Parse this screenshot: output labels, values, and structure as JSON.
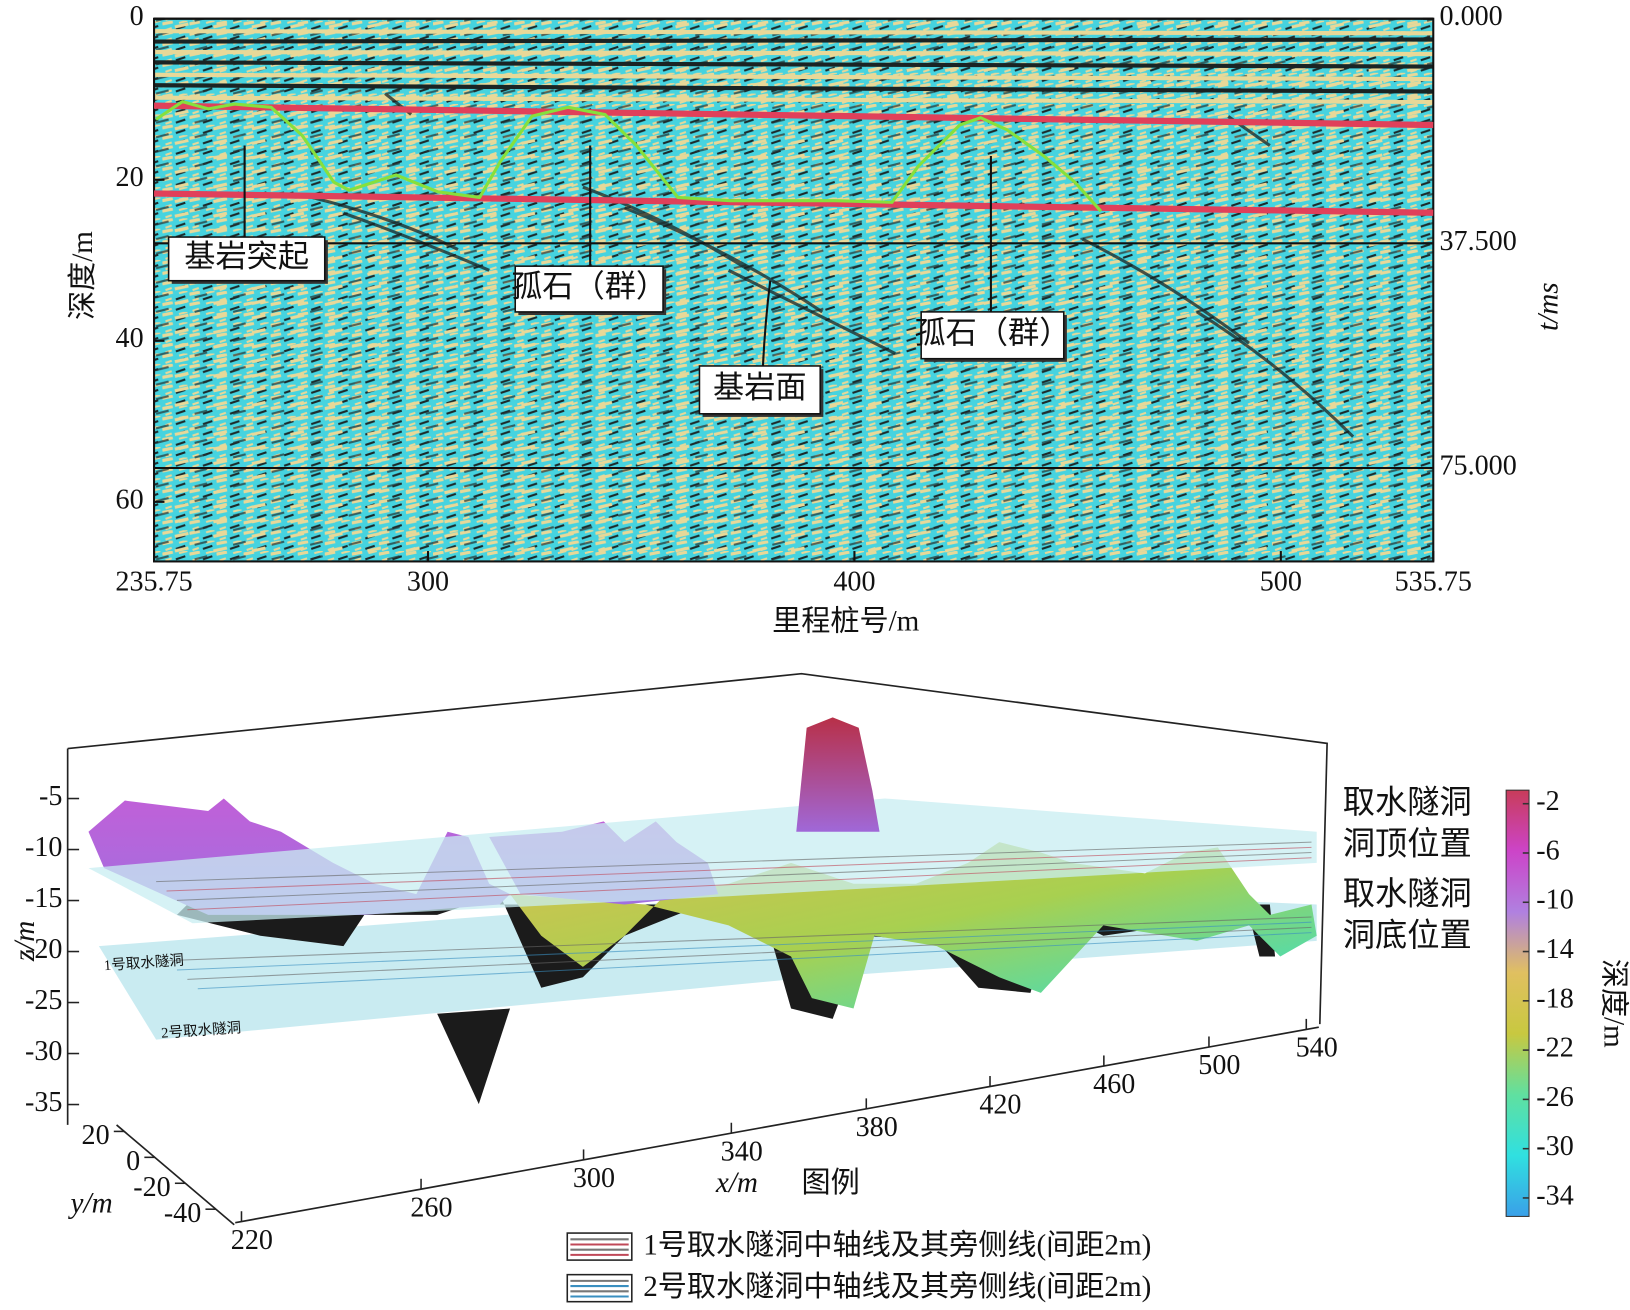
{
  "chart_data": [
    {
      "type": "seismic-section",
      "xlabel": "里程桩号/m",
      "ylabel": "深度/m",
      "y2label": "t/ms",
      "xlim": [
        235.75,
        535.75
      ],
      "xticks": [
        235.75,
        300,
        400,
        500,
        535.75
      ],
      "ylim": [
        0,
        67.4
      ],
      "yticks": [
        0,
        20,
        40,
        60
      ],
      "y2lim": [
        0,
        90.6
      ],
      "y2ticks": [
        {
          "value": 0,
          "label": "0.000"
        },
        {
          "value": 37.5,
          "label": "37.500"
        },
        {
          "value": 75,
          "label": "75.000"
        }
      ],
      "y2grid": true,
      "series": [
        {
          "color": "#e0405a",
          "x": [
            235.75,
            535.75
          ],
          "values": [
            10.8,
            13.2
          ]
        },
        {
          "color": "#e0405a",
          "x": [
            235.75,
            535.75
          ],
          "values": [
            21.7,
            24.1
          ]
        },
        {
          "color": "#86e03c",
          "x": [
            236.2,
            242.4,
            248.5,
            254.6,
            263.2,
            270.5,
            277.9,
            281.5,
            292.5,
            302.3,
            312.1,
            317.0,
            324.4,
            332.9,
            341.5,
            348.8,
            358.6,
            370.9,
            395.4,
            408.8,
            415.0,
            424.7,
            429.6,
            435.8,
            444.3,
            451.7,
            457.8
          ],
          "values": [
            12.5,
            10.3,
            11.2,
            10.6,
            11.0,
            14.5,
            20.3,
            21.3,
            19.4,
            21.5,
            22.2,
            17.7,
            12.1,
            11.0,
            11.9,
            15.7,
            22.2,
            22.6,
            22.6,
            22.8,
            18.3,
            13.2,
            12.3,
            13.8,
            17.0,
            20.3,
            23.9
          ]
        }
      ],
      "annotations": [
        {
          "text": "基岩突起"
        },
        {
          "text": "孤石（群）"
        },
        {
          "text": "基岩面"
        },
        {
          "text": "孤石（群）"
        }
      ]
    },
    {
      "type": "surface3d",
      "xlabel": "x/m",
      "ylabel": "y/m",
      "zlabel": "z/m",
      "xlim": [
        220,
        540
      ],
      "xticks": [
        220,
        260,
        300,
        340,
        380,
        420,
        460,
        500,
        540
      ],
      "ylim": [
        -52,
        25
      ],
      "yticks": [
        20,
        0,
        -20,
        -40
      ],
      "zlim": [
        -37,
        0
      ],
      "zticks": [
        -5,
        -10,
        -15,
        -20,
        -25,
        -30,
        -35
      ],
      "colorbar": {
        "label": "深度/m",
        "lim": [
          -35.5,
          -0.9
        ],
        "ticks": [
          -2,
          -6,
          -10,
          -14,
          -18,
          -22,
          -26,
          -30,
          -34
        ],
        "colors": [
          "#c83c5a",
          "#cc44c8",
          "#b080e0",
          "#e0c060",
          "#c8c840",
          "#60e0a0",
          "#30e0e0",
          "#3aa0e8"
        ]
      },
      "side_labels": [
        [
          "取水隧洞",
          "洞顶位置"
        ],
        [
          "取水隧洞",
          "洞底位置"
        ]
      ],
      "plane_labels": [
        "1号取水隧洞",
        "2号取水隧洞"
      ],
      "legend": {
        "title": "图例",
        "entries": [
          {
            "label": "1号取水隧洞中轴线及其旁侧线(间距2m)",
            "color": "#c04858"
          },
          {
            "label": "2号取水隧洞中轴线及其旁侧线(间距2m)",
            "color": "#3a8fc0"
          }
        ]
      }
    }
  ]
}
